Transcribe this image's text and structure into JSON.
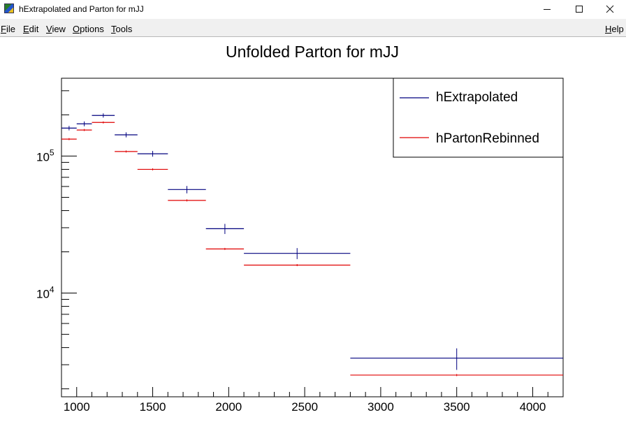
{
  "window": {
    "title": "hExtrapolated and Parton for mJJ"
  },
  "menu": {
    "items": [
      "File",
      "Edit",
      "View",
      "Options",
      "Tools"
    ],
    "help": "Help"
  },
  "colors": {
    "hExtrapolated": "#00007f",
    "hPartonRebinned": "#e00000"
  },
  "chart_data": {
    "type": "histogram",
    "title": "Unfolded Parton for mJJ",
    "xlabel": "",
    "ylabel": "",
    "xlim": [
      900,
      4200
    ],
    "ylim": [
      1750,
      370000
    ],
    "ylog": true,
    "xticks": [
      1000,
      1500,
      2000,
      2500,
      3000,
      3500,
      4000
    ],
    "xtick_labels": [
      "1000",
      "1500",
      "2000",
      "2500",
      "3000",
      "3500",
      "4000"
    ],
    "yticks_major": [
      10000,
      100000
    ],
    "ytick_labels": [
      {
        "base": "10",
        "exp": "4"
      },
      {
        "base": "10",
        "exp": "5"
      }
    ],
    "grid": false,
    "legend_position": "top-right",
    "series": [
      {
        "name": "hExtrapolated",
        "color": "#00007f",
        "bins": [
          {
            "x0": 900,
            "x1": 1000,
            "y": 160000,
            "err": 6000
          },
          {
            "x0": 1000,
            "x1": 1100,
            "y": 172000,
            "err": 7000
          },
          {
            "x0": 1100,
            "x1": 1250,
            "y": 198000,
            "err": 7000
          },
          {
            "x0": 1250,
            "x1": 1400,
            "y": 143000,
            "err": 6000
          },
          {
            "x0": 1400,
            "x1": 1600,
            "y": 104000,
            "err": 5000
          },
          {
            "x0": 1600,
            "x1": 1850,
            "y": 57000,
            "err": 3500
          },
          {
            "x0": 1850,
            "x1": 2100,
            "y": 29500,
            "err": 2500
          },
          {
            "x0": 2100,
            "x1": 2800,
            "y": 19500,
            "err": 1800
          },
          {
            "x0": 2800,
            "x1": 4200,
            "y": 3350,
            "err": 600
          }
        ]
      },
      {
        "name": "hPartonRebinned",
        "color": "#e00000",
        "bins": [
          {
            "x0": 900,
            "x1": 1000,
            "y": 133000
          },
          {
            "x0": 1000,
            "x1": 1100,
            "y": 155000
          },
          {
            "x0": 1100,
            "x1": 1250,
            "y": 176000
          },
          {
            "x0": 1250,
            "x1": 1400,
            "y": 108000
          },
          {
            "x0": 1400,
            "x1": 1600,
            "y": 80000
          },
          {
            "x0": 1600,
            "x1": 1850,
            "y": 47500
          },
          {
            "x0": 1850,
            "x1": 2100,
            "y": 21000
          },
          {
            "x0": 2100,
            "x1": 2800,
            "y": 16000
          },
          {
            "x0": 2800,
            "x1": 4200,
            "y": 2520
          }
        ]
      }
    ]
  }
}
